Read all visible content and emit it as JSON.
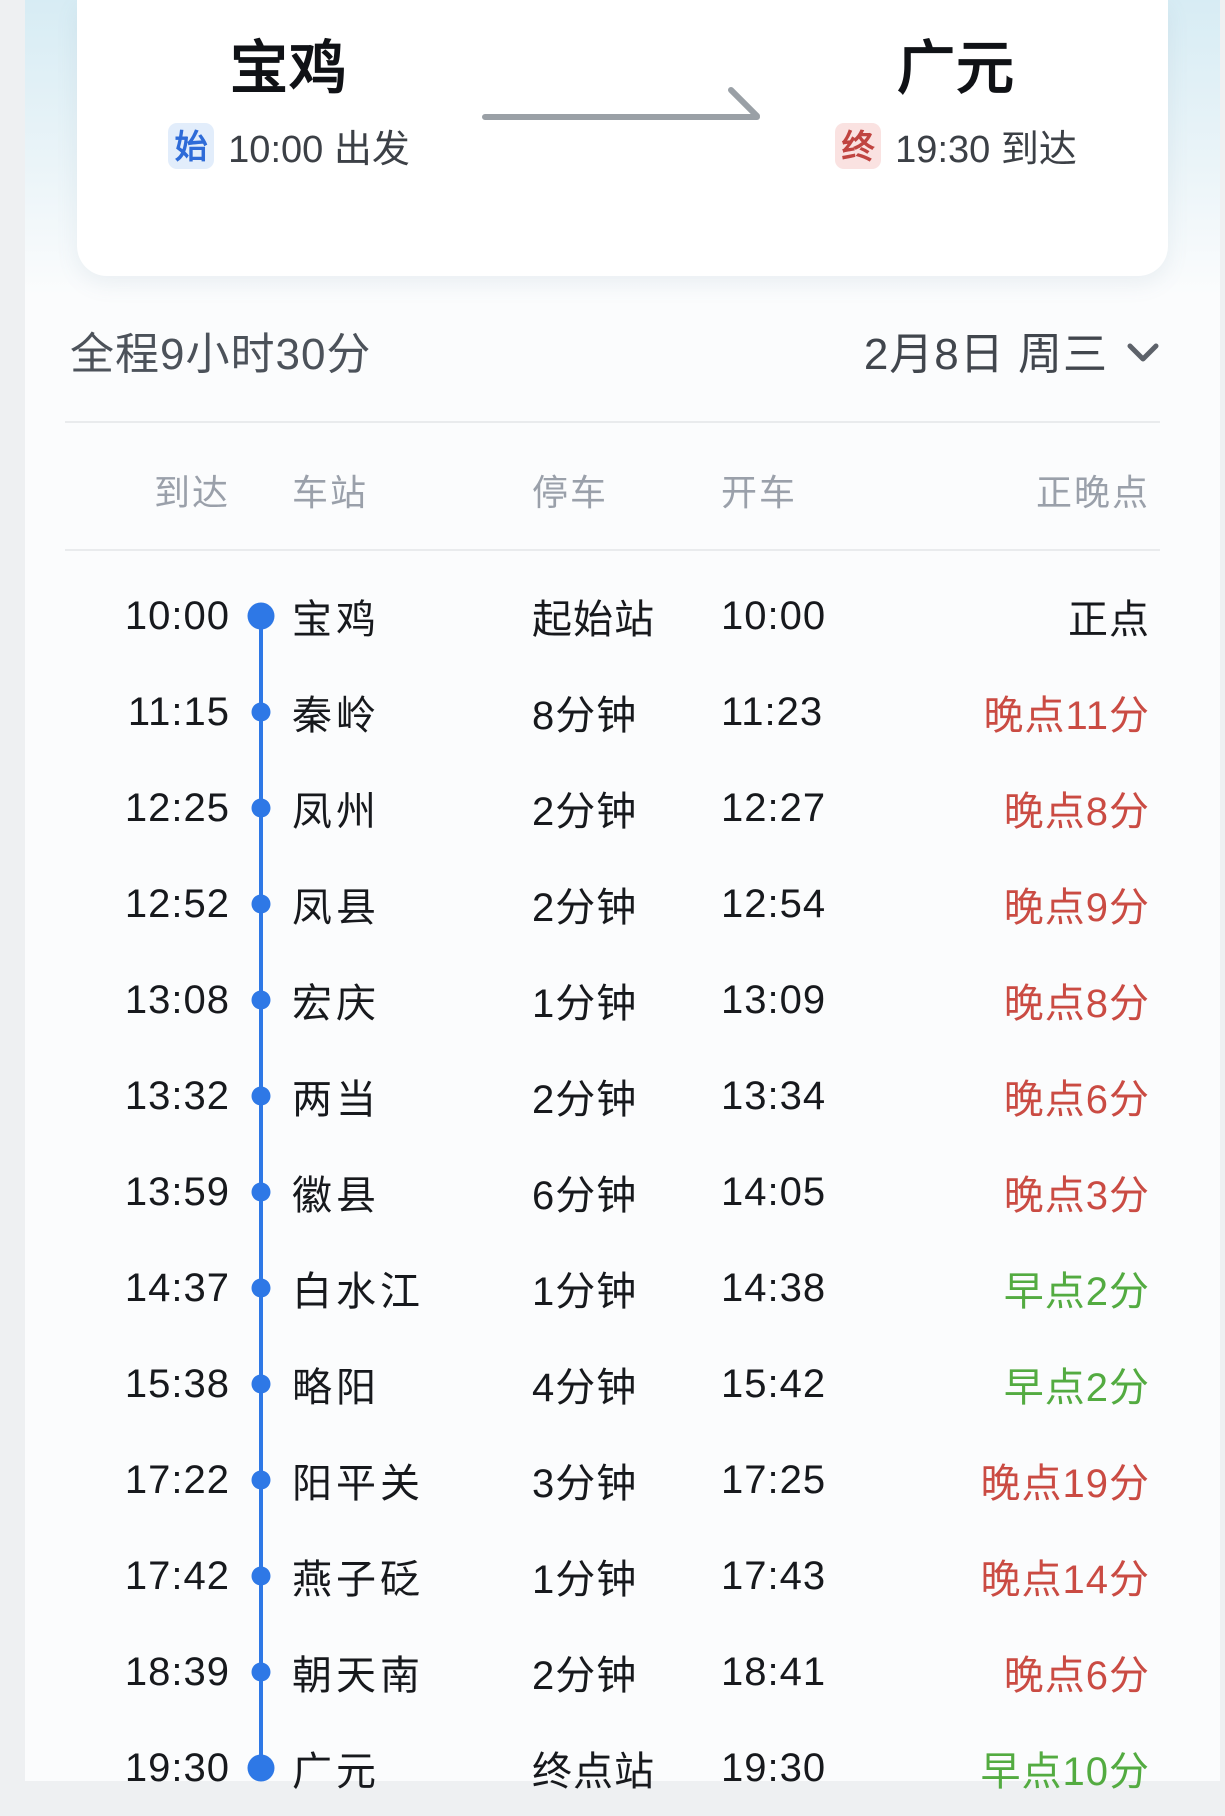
{
  "header": {
    "origin": {
      "name": "宝鸡",
      "badge": "始",
      "time_label": "10:00 出发"
    },
    "destination": {
      "name": "广元",
      "badge": "终",
      "time_label": "19:30 到达"
    }
  },
  "summary": {
    "duration": "全程9小时30分",
    "date": "2月8日 周三"
  },
  "table": {
    "columns": [
      "到达",
      "车站",
      "停车",
      "开车",
      "正晚点"
    ],
    "rows": [
      {
        "arrive": "10:00",
        "station": "宝鸡",
        "stop": "起始站",
        "depart": "10:00",
        "status": "正点",
        "status_type": "ontime",
        "dot": "large"
      },
      {
        "arrive": "11:15",
        "station": "秦岭",
        "stop": "8分钟",
        "depart": "11:23",
        "status": "晚点11分",
        "status_type": "late",
        "dot": "small"
      },
      {
        "arrive": "12:25",
        "station": "凤州",
        "stop": "2分钟",
        "depart": "12:27",
        "status": "晚点8分",
        "status_type": "late",
        "dot": "small"
      },
      {
        "arrive": "12:52",
        "station": "凤县",
        "stop": "2分钟",
        "depart": "12:54",
        "status": "晚点9分",
        "status_type": "late",
        "dot": "small"
      },
      {
        "arrive": "13:08",
        "station": "宏庆",
        "stop": "1分钟",
        "depart": "13:09",
        "status": "晚点8分",
        "status_type": "late",
        "dot": "small"
      },
      {
        "arrive": "13:32",
        "station": "两当",
        "stop": "2分钟",
        "depart": "13:34",
        "status": "晚点6分",
        "status_type": "late",
        "dot": "small"
      },
      {
        "arrive": "13:59",
        "station": "徽县",
        "stop": "6分钟",
        "depart": "14:05",
        "status": "晚点3分",
        "status_type": "late",
        "dot": "small"
      },
      {
        "arrive": "14:37",
        "station": "白水江",
        "stop": "1分钟",
        "depart": "14:38",
        "status": "早点2分",
        "status_type": "early",
        "dot": "small"
      },
      {
        "arrive": "15:38",
        "station": "略阳",
        "stop": "4分钟",
        "depart": "15:42",
        "status": "早点2分",
        "status_type": "early",
        "dot": "small"
      },
      {
        "arrive": "17:22",
        "station": "阳平关",
        "stop": "3分钟",
        "depart": "17:25",
        "status": "晚点19分",
        "status_type": "late",
        "dot": "small"
      },
      {
        "arrive": "17:42",
        "station": "燕子砭",
        "stop": "1分钟",
        "depart": "17:43",
        "status": "晚点14分",
        "status_type": "late",
        "dot": "small"
      },
      {
        "arrive": "18:39",
        "station": "朝天南",
        "stop": "2分钟",
        "depart": "18:41",
        "status": "晚点6分",
        "status_type": "late",
        "dot": "small"
      },
      {
        "arrive": "19:30",
        "station": "广元",
        "stop": "终点站",
        "depart": "19:30",
        "status": "早点10分",
        "status_type": "early",
        "dot": "large"
      }
    ]
  },
  "colors": {
    "timeline_blue": "#2e78e6",
    "late_red": "#ca4b43",
    "early_green": "#53ab41",
    "start_badge_bg": "#e2edfb",
    "start_badge_text": "#2e6bd8",
    "end_badge_bg": "#fae2e1",
    "end_badge_text": "#c04440",
    "arrow_gray": "#9aa0a6"
  }
}
